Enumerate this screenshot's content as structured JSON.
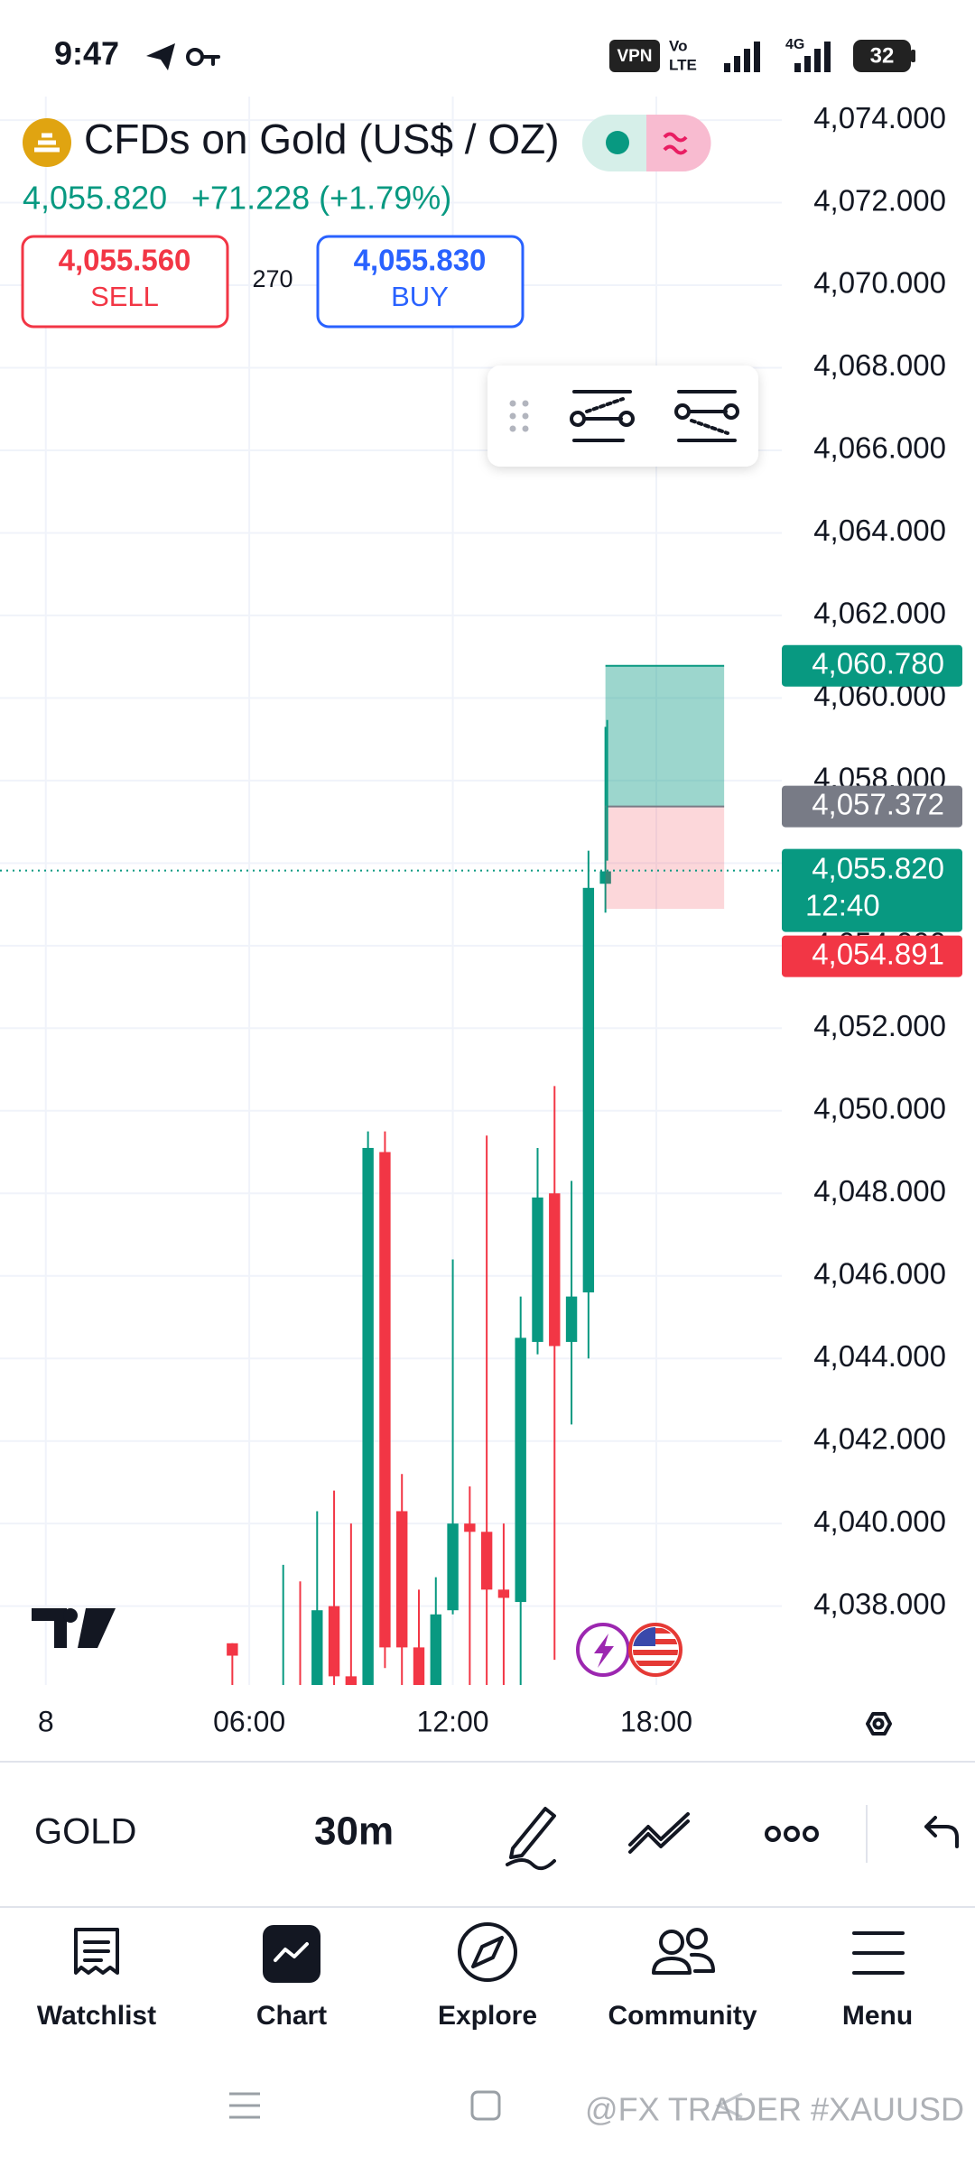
{
  "status_bar": {
    "time": "9:47",
    "icons": [
      "VPN",
      "Vo",
      "LTE",
      "4G"
    ],
    "battery": "32"
  },
  "header": {
    "title": "CFDs on Gold (US$ / OZ)",
    "price": "4,055.820",
    "change": "+71.228 (+1.79%)",
    "sell": {
      "price": "4,055.560",
      "label": "SELL"
    },
    "spread": "270",
    "buy": {
      "price": "4,055.830",
      "label": "BUY"
    }
  },
  "chart_data": {
    "type": "candlestick",
    "up_color": "#089981",
    "down_color": "#f23645",
    "grid": true,
    "xlim": [
      -1.35,
      21.7
    ],
    "xticks": [
      {
        "value": 0,
        "label": "8"
      },
      {
        "value": 6,
        "label": "06:00"
      },
      {
        "value": 12,
        "label": "12:00"
      },
      {
        "value": 18,
        "label": "18:00"
      }
    ],
    "ylim": [
      4036.09,
      4074.57
    ],
    "yticks": [
      {
        "value": 4038,
        "label": "4,038.000"
      },
      {
        "value": 4040,
        "label": "4,040.000"
      },
      {
        "value": 4042,
        "label": "4,042.000"
      },
      {
        "value": 4044,
        "label": "4,044.000"
      },
      {
        "value": 4046,
        "label": "4,046.000"
      },
      {
        "value": 4048,
        "label": "4,048.000"
      },
      {
        "value": 4050,
        "label": "4,050.000"
      },
      {
        "value": 4052,
        "label": "4,052.000"
      },
      {
        "value": 4054,
        "label": "4,054.000"
      },
      {
        "value": 4056,
        "label": "4,056.000"
      },
      {
        "value": 4058,
        "label": "4,058.000"
      },
      {
        "value": 4060,
        "label": "4,060.000"
      },
      {
        "value": 4062,
        "label": "4,062.000"
      },
      {
        "value": 4064,
        "label": "4,064.000"
      },
      {
        "value": 4066,
        "label": "4,066.000"
      },
      {
        "value": 4068,
        "label": "4,068.000"
      },
      {
        "value": 4070,
        "label": "4,070.000"
      },
      {
        "value": 4072,
        "label": "4,072.000"
      },
      {
        "value": 4074,
        "label": "4,074.000"
      }
    ],
    "x": [
      5.5,
      7,
      7.5,
      8,
      8.5,
      9,
      9.5,
      10,
      10.5,
      11,
      11.5,
      12,
      12.5,
      13,
      13.5,
      14,
      14.5,
      15,
      15.5,
      16,
      16.5
    ],
    "open": [
      4037.1,
      4035.0,
      4035.8,
      4035.8,
      4038.0,
      4036.3,
      4035.9,
      4049.0,
      4040.3,
      4037.0,
      4035.9,
      4037.9,
      4040.0,
      4039.8,
      4038.4,
      4038.1,
      4044.4,
      4048.0,
      4044.4,
      4045.6,
      4055.5
    ],
    "high": [
      4037.1,
      4039.0,
      4038.6,
      4040.3,
      4040.8,
      4040.0,
      4049.5,
      4049.5,
      4041.2,
      4038.4,
      4038.7,
      4046.4,
      4040.9,
      4049.4,
      4040.0,
      4045.5,
      4049.1,
      4050.6,
      4048.3,
      4056.3,
      4059.3
    ],
    "low": [
      4035.5,
      4034.5,
      4034.8,
      4035.0,
      4035.6,
      4035.5,
      4035.7,
      4036.5,
      4035.8,
      4035.5,
      4035.6,
      4037.8,
      4035.8,
      4036.0,
      4035.9,
      4035.8,
      4044.1,
      4036.7,
      4042.4,
      4044.0,
      4054.8
    ],
    "close": [
      4036.8,
      4035.6,
      4035.2,
      4037.9,
      4036.3,
      4035.9,
      4049.1,
      4037.0,
      4037.0,
      4035.8,
      4037.8,
      4040.0,
      4039.8,
      4038.4,
      4038.2,
      4044.5,
      4047.9,
      4044.3,
      4045.5,
      4055.4,
      4055.8
    ],
    "position": {
      "start": 16.5,
      "end": 20.0,
      "take_profit": {
        "value": 4060.78,
        "label": "4,060.780"
      },
      "entry": {
        "value": 4057.372,
        "label": "4,057.372"
      },
      "stop_loss": {
        "value": 4054.891,
        "label": "4,054.891"
      }
    },
    "last": {
      "value": 4055.82,
      "label": "4,055.820",
      "countdown": "12:40"
    }
  },
  "toolbar": {
    "symbol": "GOLD",
    "interval": "30m"
  },
  "nav": [
    {
      "label": "Watchlist"
    },
    {
      "label": "Chart"
    },
    {
      "label": "Explore"
    },
    {
      "label": "Community"
    },
    {
      "label": "Menu"
    }
  ],
  "watermark": "@FX TRADER #XAUUSD"
}
